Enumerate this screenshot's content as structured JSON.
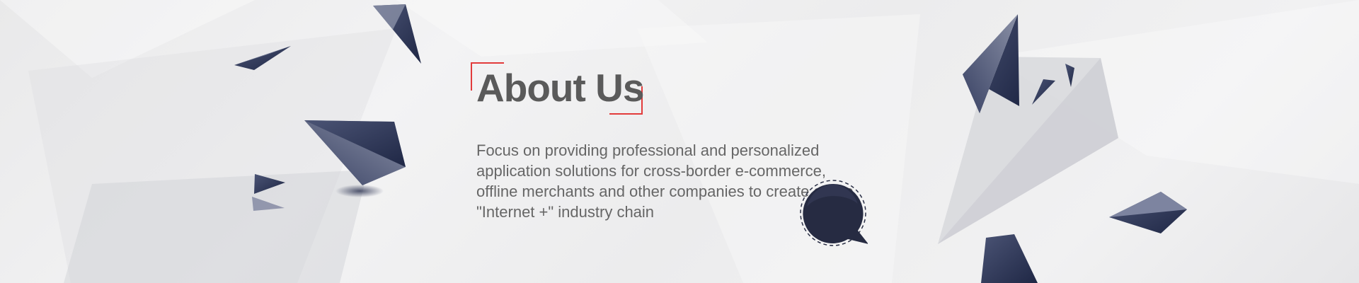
{
  "about": {
    "title": "About Us",
    "description": "Focus on providing professional and personalized application solutions for cross-border e-commerce, offline merchants and other companies to create a true \"Internet +\" industry chain"
  },
  "colors": {
    "accent": "#e23b3b",
    "title": "#5a5a5a",
    "text": "#666666",
    "shape_dark": "#2b3453",
    "chat_bubble": "#262b42"
  },
  "icons": {
    "chat": "chat-bubble-icon"
  }
}
